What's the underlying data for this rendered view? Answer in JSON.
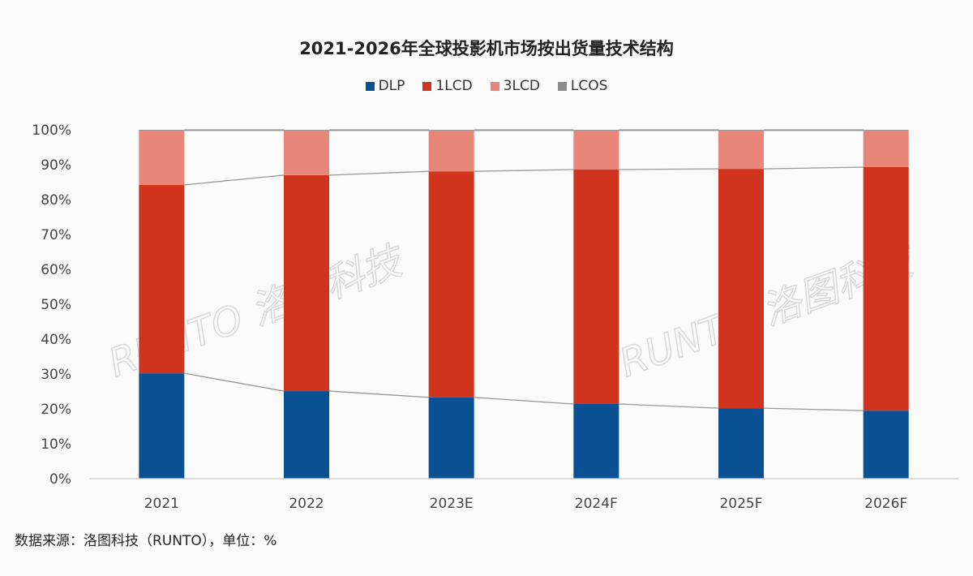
{
  "chart_data": {
    "type": "bar",
    "stacked": true,
    "title": "2021-2026年全球投影机市场按出货量技术结构",
    "categories": [
      "2021",
      "2022",
      "2023E",
      "2024F",
      "2025F",
      "2026F"
    ],
    "series": [
      {
        "name": "DLP",
        "color": "#0a5194",
        "values": [
          30.2,
          25.1,
          23.3,
          21.4,
          20.2,
          19.5
        ]
      },
      {
        "name": "1LCD",
        "color": "#d0331e",
        "values": [
          54.0,
          61.9,
          64.8,
          67.2,
          68.6,
          69.8
        ]
      },
      {
        "name": "3LCD",
        "color": "#e8867a",
        "values": [
          15.6,
          12.8,
          11.7,
          11.2,
          11.0,
          10.5
        ]
      },
      {
        "name": "LCOS",
        "color": "#8c8c8c",
        "values": [
          0.2,
          0.2,
          0.2,
          0.2,
          0.2,
          0.2
        ]
      }
    ],
    "yticks": [
      "0%",
      "10%",
      "20%",
      "30%",
      "40%",
      "50%",
      "60%",
      "70%",
      "80%",
      "90%",
      "100%"
    ],
    "ylim": [
      0,
      100
    ],
    "legend_position": "top",
    "grid": false
  },
  "source": "数据来源：洛图科技（RUNTO），单位：%",
  "watermark": "RUNTO 洛图科技"
}
